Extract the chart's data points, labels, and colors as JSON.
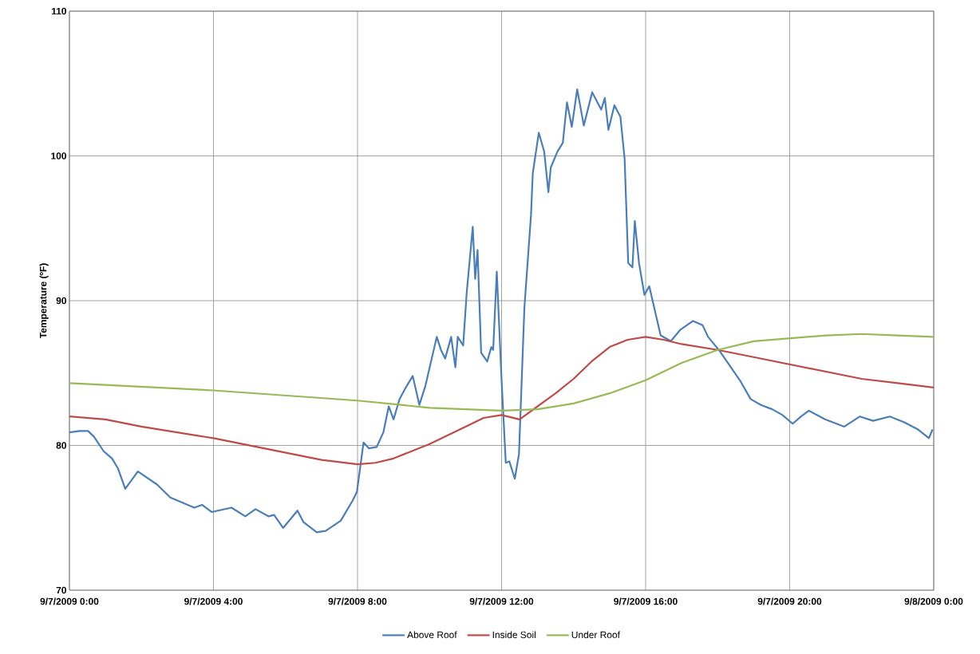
{
  "chart_data": {
    "type": "line",
    "ylabel": "Temperature (ºF)",
    "xlim": [
      "2009-09-07T00:00",
      "2009-09-08T00:00"
    ],
    "ylim": [
      70,
      110
    ],
    "yticks": [
      70,
      80,
      90,
      100,
      110
    ],
    "xticks": [
      {
        "value": "2009-09-07T00:00",
        "label": "9/7/2009  0:00"
      },
      {
        "value": "2009-09-07T04:00",
        "label": "9/7/2009  4:00"
      },
      {
        "value": "2009-09-07T08:00",
        "label": "9/7/2009  8:00"
      },
      {
        "value": "2009-09-07T12:00",
        "label": "9/7/2009  12:00"
      },
      {
        "value": "2009-09-07T16:00",
        "label": "9/7/2009  16:00"
      },
      {
        "value": "2009-09-07T20:00",
        "label": "9/7/2009  20:00"
      },
      {
        "value": "2009-09-08T00:00",
        "label": "9/8/2009  0:00"
      }
    ],
    "grid": true,
    "legend": "bottom",
    "series": [
      {
        "name": "Above Roof",
        "color": "#4a7ebb",
        "x": [
          "2009-09-07T00:00",
          "2009-09-07T00:17",
          "2009-09-07T00:31",
          "2009-09-07T00:41",
          "2009-09-07T00:57",
          "2009-09-07T01:11",
          "2009-09-07T01:21",
          "2009-09-07T01:33",
          "2009-09-07T01:54",
          "2009-09-07T02:26",
          "2009-09-07T02:48",
          "2009-09-07T03:28",
          "2009-09-07T03:41",
          "2009-09-07T03:57",
          "2009-09-07T04:30",
          "2009-09-07T04:53",
          "2009-09-07T05:10",
          "2009-09-07T05:32",
          "2009-09-07T05:41",
          "2009-09-07T05:56",
          "2009-09-07T06:20",
          "2009-09-07T06:30",
          "2009-09-07T06:52",
          "2009-09-07T07:07",
          "2009-09-07T07:32",
          "2009-09-07T07:52",
          "2009-09-07T07:59",
          "2009-09-07T08:10",
          "2009-09-07T08:19",
          "2009-09-07T08:32",
          "2009-09-07T08:43",
          "2009-09-07T08:52",
          "2009-09-07T09:00",
          "2009-09-07T09:10",
          "2009-09-07T09:19",
          "2009-09-07T09:32",
          "2009-09-07T09:43",
          "2009-09-07T09:53",
          "2009-09-07T10:12",
          "2009-09-07T10:19",
          "2009-09-07T10:26",
          "2009-09-07T10:36",
          "2009-09-07T10:43",
          "2009-09-07T10:47",
          "2009-09-07T10:56",
          "2009-09-07T11:02",
          "2009-09-07T11:12",
          "2009-09-07T11:16",
          "2009-09-07T11:20",
          "2009-09-07T11:26",
          "2009-09-07T11:36",
          "2009-09-07T11:43",
          "2009-09-07T11:46",
          "2009-09-07T11:52",
          "2009-09-07T12:00",
          "2009-09-07T12:07",
          "2009-09-07T12:13",
          "2009-09-07T12:22",
          "2009-09-07T12:29",
          "2009-09-07T12:38",
          "2009-09-07T12:49",
          "2009-09-07T12:52",
          "2009-09-07T13:02",
          "2009-09-07T13:11",
          "2009-09-07T13:18",
          "2009-09-07T13:22",
          "2009-09-07T13:33",
          "2009-09-07T13:42",
          "2009-09-07T13:49",
          "2009-09-07T13:57",
          "2009-09-07T14:06",
          "2009-09-07T14:17",
          "2009-09-07T14:31",
          "2009-09-07T14:46",
          "2009-09-07T14:52",
          "2009-09-07T14:58",
          "2009-09-07T15:08",
          "2009-09-07T15:18",
          "2009-09-07T15:25",
          "2009-09-07T15:31",
          "2009-09-07T15:38",
          "2009-09-07T15:42",
          "2009-09-07T15:49",
          "2009-09-07T15:58",
          "2009-09-07T16:06",
          "2009-09-07T16:25",
          "2009-09-07T16:42",
          "2009-09-07T16:58",
          "2009-09-07T17:19",
          "2009-09-07T17:35",
          "2009-09-07T17:44",
          "2009-09-07T18:02",
          "2009-09-07T18:37",
          "2009-09-07T18:55",
          "2009-09-07T19:12",
          "2009-09-07T19:31",
          "2009-09-07T19:48",
          "2009-09-07T20:05",
          "2009-09-07T20:19",
          "2009-09-07T20:32",
          "2009-09-07T20:59",
          "2009-09-07T21:31",
          "2009-09-07T21:57",
          "2009-09-07T22:19",
          "2009-09-07T22:47",
          "2009-09-07T23:11",
          "2009-09-07T23:34",
          "2009-09-07T23:52",
          "2009-09-07T23:58"
        ],
        "values": [
          80.9,
          81.0,
          81.0,
          80.6,
          79.6,
          79.1,
          78.4,
          77.0,
          78.2,
          77.3,
          76.4,
          75.7,
          75.9,
          75.4,
          75.7,
          75.1,
          75.6,
          75.1,
          75.2,
          74.3,
          75.5,
          74.7,
          74.0,
          74.1,
          74.8,
          76.2,
          76.8,
          80.2,
          79.8,
          79.9,
          80.9,
          82.7,
          81.8,
          83.2,
          83.9,
          84.8,
          82.8,
          84.1,
          87.5,
          86.6,
          86.0,
          87.5,
          85.4,
          87.5,
          86.9,
          90.6,
          95.1,
          91.5,
          93.5,
          86.4,
          85.8,
          86.8,
          86.6,
          92.0,
          84.5,
          78.8,
          78.9,
          77.7,
          79.4,
          89.5,
          95.9,
          98.8,
          101.6,
          100.3,
          97.5,
          99.2,
          100.3,
          100.9,
          103.7,
          102.0,
          104.6,
          102.1,
          104.4,
          103.2,
          104.0,
          101.8,
          103.5,
          102.7,
          99.8,
          92.6,
          92.3,
          95.5,
          92.6,
          90.4,
          91.0,
          87.6,
          87.2,
          88.0,
          88.6,
          88.3,
          87.5,
          86.6,
          84.5,
          83.2,
          82.8,
          82.5,
          82.1,
          81.5,
          82.0,
          82.4,
          81.8,
          81.3,
          82.0,
          81.7,
          82.0,
          81.6,
          81.1,
          80.5,
          81.1
        ]
      },
      {
        "name": "Inside Soil",
        "color": "#be4b48",
        "x": [
          "2009-09-07T00:00",
          "2009-09-07T01:00",
          "2009-09-07T02:00",
          "2009-09-07T03:00",
          "2009-09-07T04:00",
          "2009-09-07T05:00",
          "2009-09-07T06:00",
          "2009-09-07T07:00",
          "2009-09-07T08:00",
          "2009-09-07T08:30",
          "2009-09-07T09:00",
          "2009-09-07T09:30",
          "2009-09-07T10:00",
          "2009-09-07T10:30",
          "2009-09-07T11:00",
          "2009-09-07T11:30",
          "2009-09-07T12:00",
          "2009-09-07T12:30",
          "2009-09-07T13:00",
          "2009-09-07T13:30",
          "2009-09-07T14:00",
          "2009-09-07T14:30",
          "2009-09-07T15:00",
          "2009-09-07T15:30",
          "2009-09-07T16:00",
          "2009-09-07T16:30",
          "2009-09-07T17:00",
          "2009-09-07T17:30",
          "2009-09-07T18:00",
          "2009-09-07T19:00",
          "2009-09-07T20:00",
          "2009-09-07T21:00",
          "2009-09-07T22:00",
          "2009-09-07T23:00",
          "2009-09-08T00:00"
        ],
        "values": [
          82.0,
          81.8,
          81.3,
          80.9,
          80.5,
          80.0,
          79.5,
          79.0,
          78.7,
          78.8,
          79.1,
          79.6,
          80.1,
          80.7,
          81.3,
          81.9,
          82.1,
          81.8,
          82.7,
          83.6,
          84.6,
          85.8,
          86.8,
          87.3,
          87.5,
          87.3,
          87.0,
          86.8,
          86.6,
          86.1,
          85.6,
          85.1,
          84.6,
          84.3,
          84.0
        ]
      },
      {
        "name": "Under Roof",
        "color": "#98b954",
        "x": [
          "2009-09-07T00:00",
          "2009-09-07T04:00",
          "2009-09-07T08:00",
          "2009-09-07T10:00",
          "2009-09-07T12:00",
          "2009-09-07T13:00",
          "2009-09-07T14:00",
          "2009-09-07T15:00",
          "2009-09-07T16:00",
          "2009-09-07T17:00",
          "2009-09-07T18:00",
          "2009-09-07T19:00",
          "2009-09-07T20:00",
          "2009-09-07T21:00",
          "2009-09-07T22:00",
          "2009-09-07T23:00",
          "2009-09-08T00:00"
        ],
        "values": [
          84.3,
          83.8,
          83.1,
          82.6,
          82.4,
          82.5,
          82.9,
          83.6,
          84.5,
          85.7,
          86.6,
          87.2,
          87.4,
          87.6,
          87.7,
          87.6,
          87.5
        ]
      }
    ]
  }
}
